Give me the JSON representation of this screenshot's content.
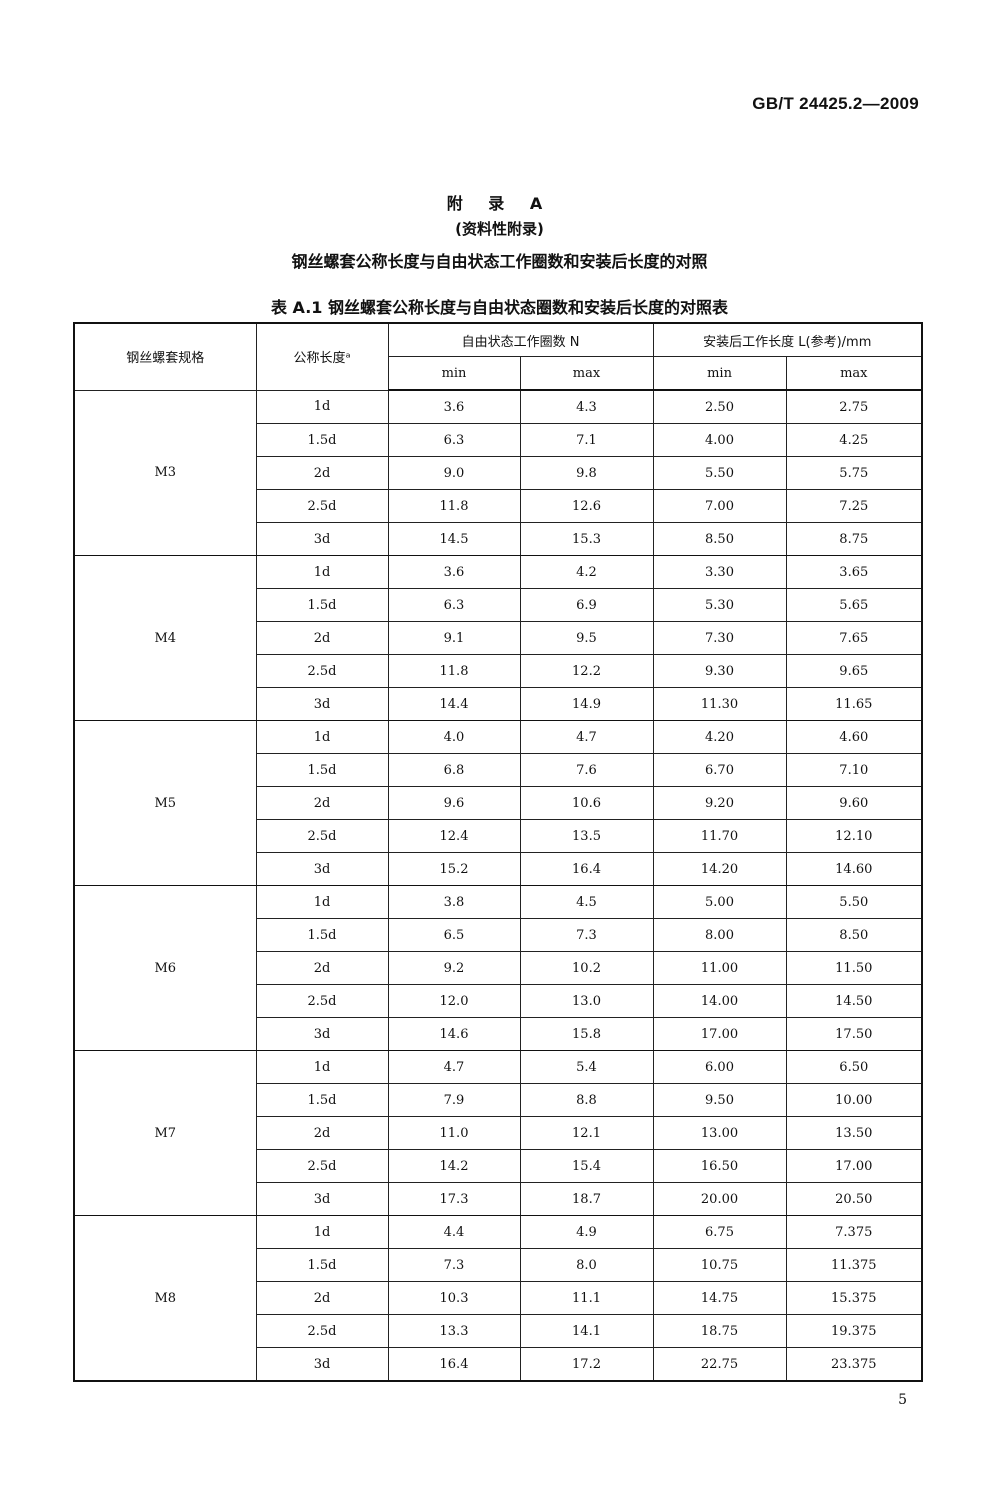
{
  "header": {
    "standard_number": "GB/T 24425.2—2009"
  },
  "annex": {
    "title": "附 录 A",
    "type": "(资料性附录)",
    "subject": "钢丝螺套公称长度与自由状态工作圈数和安装后长度的对照"
  },
  "table": {
    "caption": "表 A.1  钢丝螺套公称长度与自由状态圈数和安装后长度的对照表",
    "headers": {
      "spec": "钢丝螺套规格",
      "nominal_length": "公称长度ᵃ",
      "coils_group": "自由状态工作圈数 N",
      "length_group": "安装后工作长度 L(参考)/mm",
      "min": "min",
      "max": "max"
    },
    "groups": [
      {
        "spec": "M3",
        "rows": [
          [
            "1d",
            "3.6",
            "4.3",
            "2.50",
            "2.75"
          ],
          [
            "1.5d",
            "6.3",
            "7.1",
            "4.00",
            "4.25"
          ],
          [
            "2d",
            "9.0",
            "9.8",
            "5.50",
            "5.75"
          ],
          [
            "2.5d",
            "11.8",
            "12.6",
            "7.00",
            "7.25"
          ],
          [
            "3d",
            "14.5",
            "15.3",
            "8.50",
            "8.75"
          ]
        ]
      },
      {
        "spec": "M4",
        "rows": [
          [
            "1d",
            "3.6",
            "4.2",
            "3.30",
            "3.65"
          ],
          [
            "1.5d",
            "6.3",
            "6.9",
            "5.30",
            "5.65"
          ],
          [
            "2d",
            "9.1",
            "9.5",
            "7.30",
            "7.65"
          ],
          [
            "2.5d",
            "11.8",
            "12.2",
            "9.30",
            "9.65"
          ],
          [
            "3d",
            "14.4",
            "14.9",
            "11.30",
            "11.65"
          ]
        ]
      },
      {
        "spec": "M5",
        "rows": [
          [
            "1d",
            "4.0",
            "4.7",
            "4.20",
            "4.60"
          ],
          [
            "1.5d",
            "6.8",
            "7.6",
            "6.70",
            "7.10"
          ],
          [
            "2d",
            "9.6",
            "10.6",
            "9.20",
            "9.60"
          ],
          [
            "2.5d",
            "12.4",
            "13.5",
            "11.70",
            "12.10"
          ],
          [
            "3d",
            "15.2",
            "16.4",
            "14.20",
            "14.60"
          ]
        ]
      },
      {
        "spec": "M6",
        "rows": [
          [
            "1d",
            "3.8",
            "4.5",
            "5.00",
            "5.50"
          ],
          [
            "1.5d",
            "6.5",
            "7.3",
            "8.00",
            "8.50"
          ],
          [
            "2d",
            "9.2",
            "10.2",
            "11.00",
            "11.50"
          ],
          [
            "2.5d",
            "12.0",
            "13.0",
            "14.00",
            "14.50"
          ],
          [
            "3d",
            "14.6",
            "15.8",
            "17.00",
            "17.50"
          ]
        ]
      },
      {
        "spec": "M7",
        "rows": [
          [
            "1d",
            "4.7",
            "5.4",
            "6.00",
            "6.50"
          ],
          [
            "1.5d",
            "7.9",
            "8.8",
            "9.50",
            "10.00"
          ],
          [
            "2d",
            "11.0",
            "12.1",
            "13.00",
            "13.50"
          ],
          [
            "2.5d",
            "14.2",
            "15.4",
            "16.50",
            "17.00"
          ],
          [
            "3d",
            "17.3",
            "18.7",
            "20.00",
            "20.50"
          ]
        ]
      },
      {
        "spec": "M8",
        "rows": [
          [
            "1d",
            "4.4",
            "4.9",
            "6.75",
            "7.375"
          ],
          [
            "1.5d",
            "7.3",
            "8.0",
            "10.75",
            "11.375"
          ],
          [
            "2d",
            "10.3",
            "11.1",
            "14.75",
            "15.375"
          ],
          [
            "2.5d",
            "13.3",
            "14.1",
            "18.75",
            "19.375"
          ],
          [
            "3d",
            "16.4",
            "17.2",
            "22.75",
            "23.375"
          ]
        ]
      }
    ]
  },
  "footer": {
    "page_number": "5"
  }
}
